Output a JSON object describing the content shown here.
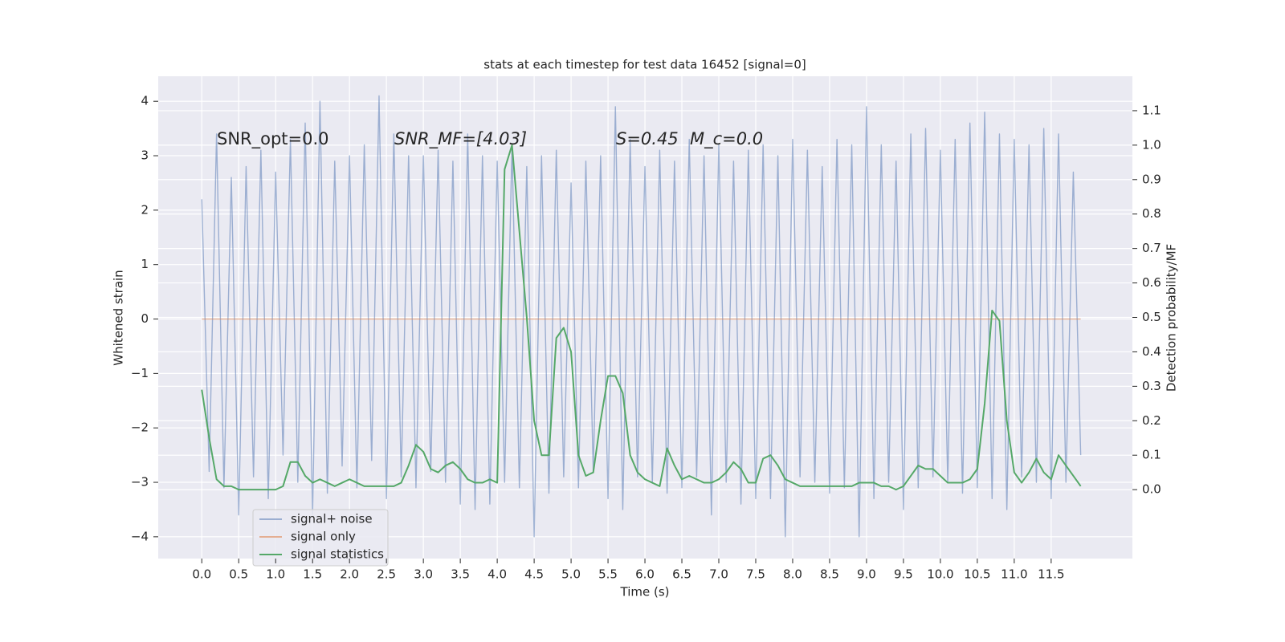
{
  "chart_data": {
    "type": "line",
    "title": "stats at each timestep for test data 16452 [signal=0]",
    "x_label": "Time (s)",
    "y_label": "Whitened strain",
    "y2_label": "Detection probability/MF",
    "annotations": [
      "SNR_opt=0.0",
      "SNR_MF=[4.03]",
      "S=0.45",
      "M_c=0.0"
    ],
    "grid": true,
    "legend": "lower left",
    "xlim": [
      -0.59,
      12.6
    ],
    "ylim": [
      -4.4,
      4.46
    ],
    "y2lim": [
      -0.2,
      1.2
    ],
    "xticks": [
      {
        "value": 0,
        "label": "0.0"
      },
      0.5,
      {
        "value": 1,
        "label": "1.0"
      },
      1.5,
      {
        "value": 2,
        "label": "2.0"
      },
      2.5,
      {
        "value": 3,
        "label": "3.0"
      },
      3.5,
      {
        "value": 4,
        "label": "4.0"
      },
      4.5,
      {
        "value": 5,
        "label": "5.0"
      },
      5.5,
      {
        "value": 6,
        "label": "6.0"
      },
      6.5,
      {
        "value": 7,
        "label": "7.0"
      },
      7.5,
      {
        "value": 8,
        "label": "8.0"
      },
      8.5,
      {
        "value": 9,
        "label": "9.0"
      },
      9.5,
      {
        "value": 10,
        "label": "10.0"
      },
      10.5,
      {
        "value": 11,
        "label": "11.0"
      },
      11.5
    ],
    "yticks": [
      {
        "value": -4,
        "label": "−4"
      },
      {
        "value": -3,
        "label": "−3"
      },
      {
        "value": -2,
        "label": "−2"
      },
      {
        "value": -1,
        "label": "−1"
      },
      0,
      1,
      2,
      3,
      4
    ],
    "y2ticks": [
      {
        "value": 0,
        "label": "0.0"
      },
      0.1,
      0.2,
      0.3,
      0.4,
      0.5,
      0.6,
      0.7,
      0.8,
      0.9,
      {
        "value": 1,
        "label": "1.0"
      },
      1.1
    ],
    "x": [
      0.0,
      0.1,
      0.2,
      0.3,
      0.4,
      0.5,
      0.6,
      0.7,
      0.8,
      0.9,
      1.0,
      1.1,
      1.2,
      1.3,
      1.4,
      1.5,
      1.6,
      1.7,
      1.8,
      1.9,
      2.0,
      2.1,
      2.2,
      2.3,
      2.4,
      2.5,
      2.6,
      2.7,
      2.8,
      2.9,
      3.0,
      3.1,
      3.2,
      3.3,
      3.4,
      3.5,
      3.6,
      3.7,
      3.8,
      3.9,
      4.0,
      4.1,
      4.2,
      4.3,
      4.4,
      4.5,
      4.6,
      4.7,
      4.8,
      4.9,
      5.0,
      5.1,
      5.2,
      5.3,
      5.4,
      5.5,
      5.6,
      5.7,
      5.8,
      5.9,
      6.0,
      6.1,
      6.2,
      6.3,
      6.4,
      6.5,
      6.6,
      6.7,
      6.8,
      6.9,
      7.0,
      7.1,
      7.2,
      7.3,
      7.4,
      7.5,
      7.6,
      7.7,
      7.8,
      7.9,
      8.0,
      8.1,
      8.2,
      8.3,
      8.4,
      8.5,
      8.6,
      8.7,
      8.8,
      8.9,
      9.0,
      9.1,
      9.2,
      9.3,
      9.4,
      9.5,
      9.6,
      9.7,
      9.8,
      9.9,
      10.0,
      10.1,
      10.2,
      10.3,
      10.4,
      10.5,
      10.6,
      10.7,
      10.8,
      10.9,
      11.0,
      11.1,
      11.2,
      11.3,
      11.4,
      11.5,
      11.6,
      11.7,
      11.8,
      11.9
    ],
    "series": [
      {
        "name": "signal+ noise",
        "color": "#4c72b0",
        "values": [
          2.2,
          -2.8,
          3.4,
          -3.1,
          2.6,
          -3.6,
          2.8,
          -2.9,
          3.1,
          -3.3,
          2.7,
          -2.5,
          3.3,
          -3.0,
          3.6,
          -3.6,
          4.0,
          -3.2,
          2.9,
          -2.7,
          3.0,
          -3.1,
          3.2,
          -2.6,
          4.1,
          -3.3,
          3.4,
          -2.9,
          3.0,
          -3.1,
          3.0,
          -2.8,
          3.1,
          -3.0,
          2.9,
          -3.4,
          3.4,
          -3.5,
          3.0,
          -3.4,
          2.9,
          -3.0,
          3.2,
          -3.1,
          2.8,
          -4.0,
          3.0,
          -3.2,
          3.1,
          -2.9,
          2.5,
          -3.1,
          2.9,
          -2.8,
          3.0,
          -3.3,
          3.9,
          -3.5,
          3.3,
          -2.9,
          2.8,
          -3.0,
          3.1,
          -3.2,
          2.9,
          -3.1,
          3.3,
          -2.9,
          3.0,
          -3.6,
          3.2,
          -3.0,
          2.9,
          -3.4,
          3.1,
          -3.3,
          3.2,
          -3.3,
          3.0,
          -4.0,
          3.3,
          -2.9,
          3.1,
          -3.0,
          2.8,
          -3.2,
          3.3,
          -3.1,
          3.2,
          -4.0,
          3.9,
          -3.3,
          3.2,
          -3.0,
          2.9,
          -3.5,
          3.4,
          -3.1,
          3.5,
          -2.9,
          3.1,
          -3.0,
          3.3,
          -3.2,
          3.6,
          -3.1,
          3.8,
          -3.3,
          3.4,
          -3.5,
          3.3,
          -2.9,
          3.2,
          -3.0,
          3.5,
          -3.3,
          3.4,
          -3.0,
          2.7,
          -2.5
        ]
      },
      {
        "name": "signal only",
        "color": "#dd8452",
        "values": [
          0,
          0,
          0,
          0,
          0,
          0,
          0,
          0,
          0,
          0,
          0,
          0,
          0,
          0,
          0,
          0,
          0,
          0,
          0,
          0,
          0,
          0,
          0,
          0,
          0,
          0,
          0,
          0,
          0,
          0,
          0,
          0,
          0,
          0,
          0,
          0,
          0,
          0,
          0,
          0,
          0,
          0,
          0,
          0,
          0,
          0,
          0,
          0,
          0,
          0,
          0,
          0,
          0,
          0,
          0,
          0,
          0,
          0,
          0,
          0,
          0,
          0,
          0,
          0,
          0,
          0,
          0,
          0,
          0,
          0,
          0,
          0,
          0,
          0,
          0,
          0,
          0,
          0,
          0,
          0,
          0,
          0,
          0,
          0,
          0,
          0,
          0,
          0,
          0,
          0,
          0,
          0,
          0,
          0,
          0,
          0,
          0,
          0,
          0,
          0,
          0,
          0,
          0,
          0,
          0,
          0,
          0,
          0,
          0,
          0,
          0,
          0,
          0,
          0,
          0,
          0,
          0,
          0,
          0,
          0
        ]
      },
      {
        "name": "signal statistics",
        "color": "#55a868",
        "axis": "y2",
        "values": [
          0.29,
          0.15,
          0.03,
          0.01,
          0.01,
          0.0,
          0.0,
          0.0,
          0.0,
          0.0,
          0.0,
          0.01,
          0.08,
          0.08,
          0.04,
          0.02,
          0.03,
          0.02,
          0.01,
          0.02,
          0.03,
          0.02,
          0.01,
          0.01,
          0.01,
          0.01,
          0.01,
          0.02,
          0.07,
          0.13,
          0.11,
          0.06,
          0.05,
          0.07,
          0.08,
          0.06,
          0.03,
          0.02,
          0.02,
          0.03,
          0.02,
          0.93,
          1.0,
          0.75,
          0.5,
          0.2,
          0.1,
          0.1,
          0.44,
          0.47,
          0.4,
          0.1,
          0.04,
          0.05,
          0.2,
          0.33,
          0.33,
          0.28,
          0.1,
          0.05,
          0.03,
          0.02,
          0.01,
          0.12,
          0.07,
          0.03,
          0.04,
          0.03,
          0.02,
          0.02,
          0.03,
          0.05,
          0.08,
          0.06,
          0.02,
          0.02,
          0.09,
          0.1,
          0.07,
          0.03,
          0.02,
          0.01,
          0.01,
          0.01,
          0.01,
          0.01,
          0.01,
          0.01,
          0.01,
          0.02,
          0.02,
          0.02,
          0.01,
          0.01,
          0.0,
          0.01,
          0.04,
          0.07,
          0.06,
          0.06,
          0.04,
          0.02,
          0.02,
          0.02,
          0.03,
          0.06,
          0.25,
          0.52,
          0.49,
          0.2,
          0.05,
          0.02,
          0.05,
          0.09,
          0.05,
          0.03,
          0.1,
          0.07,
          0.04,
          0.01
        ]
      }
    ]
  }
}
